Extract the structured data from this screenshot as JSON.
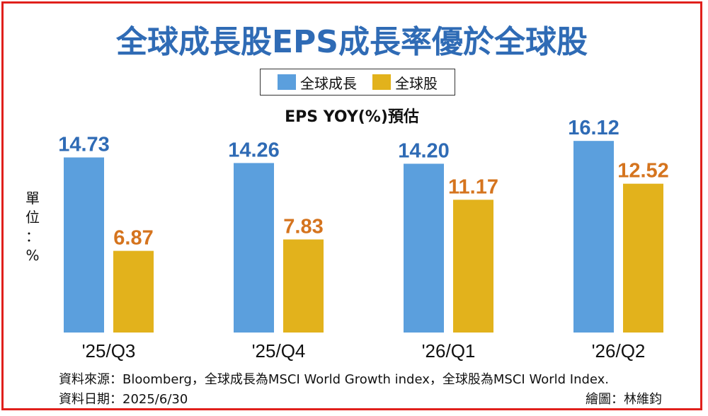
{
  "chart_data": {
    "type": "bar",
    "title": "全球成長股EPS成長率優於全球股",
    "subtitle": "EPS YOY(%)預估",
    "unit_label": [
      "單",
      "位",
      "：",
      "%"
    ],
    "categories": [
      "'25/Q3",
      "'25/Q4",
      "'26/Q1",
      "'26/Q2"
    ],
    "series": [
      {
        "name": "全球成長",
        "values": [
          14.73,
          14.26,
          14.2,
          16.12
        ],
        "color": "#5b9fdd",
        "label_color": "#2f6bb5"
      },
      {
        "name": "全球股",
        "values": [
          6.87,
          7.83,
          11.17,
          12.52
        ],
        "color": "#e2b21c",
        "label_color": "#d5741e"
      }
    ],
    "ylim": [
      0,
      18
    ],
    "grid": false,
    "legend": "top-center"
  },
  "footer": {
    "source": "資料來源：Bloomberg，全球成長為MSCI World Growth index，全球股為MSCI World Index.",
    "date": "資料日期：2025/6/30",
    "credit": "繪圖：林維鈞"
  },
  "colors": {
    "border": "#e0201c",
    "title": "#2f6bb5"
  }
}
